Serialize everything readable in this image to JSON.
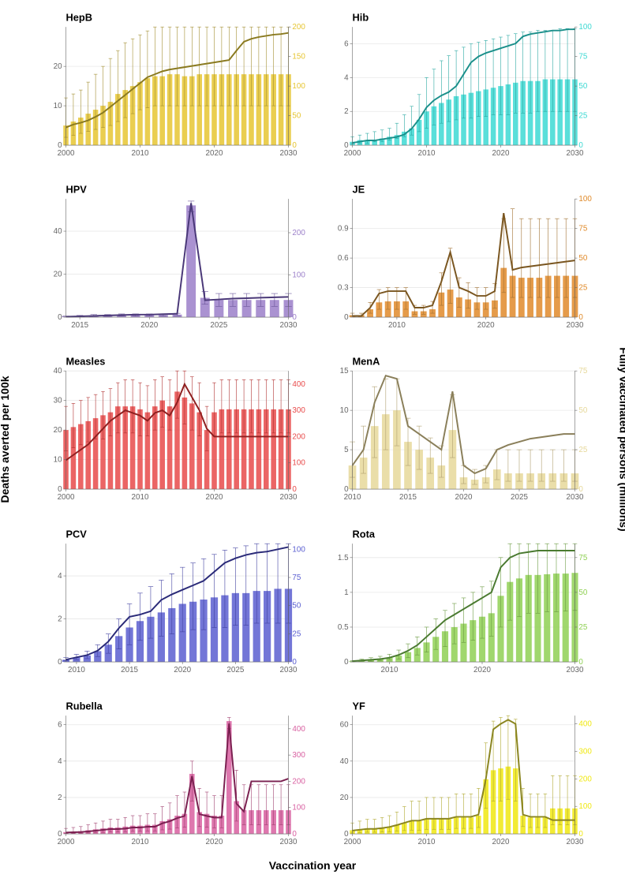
{
  "axis_left_label": "Deaths averted per 100k",
  "axis_right_label": "Fully vaccinated persons (millions)",
  "axis_bottom_label": "Vaccination year",
  "grid_color": "#e8e8e8",
  "panels": [
    {
      "title": "HepB",
      "bar_color": "#e6c531",
      "line_color": "#8a7a20",
      "err_color": "#a28e30",
      "x_start": 2000,
      "x_end": 2030,
      "x_ticks": [
        2000,
        2010,
        2020,
        2030
      ],
      "y_left_max": 30,
      "y_left_ticks": [
        0,
        10,
        20
      ],
      "y_right_max": 200,
      "y_right_ticks": [
        0,
        50,
        100,
        150,
        200
      ],
      "bars": [
        5,
        6,
        7,
        8,
        9,
        10,
        11,
        13,
        14,
        15,
        16,
        17,
        17.5,
        17.5,
        18,
        18,
        17.5,
        17.5,
        18,
        18,
        18,
        18,
        18,
        18,
        18,
        18,
        18,
        18,
        18,
        18,
        18
      ],
      "err_hi": [
        12,
        13,
        14,
        16,
        18,
        20,
        22,
        24,
        26,
        27,
        28,
        29,
        30,
        30,
        30,
        30,
        30,
        30,
        30,
        30,
        30,
        30,
        30,
        30,
        30,
        30,
        30,
        30,
        30,
        30,
        30
      ],
      "err_lo": [
        2,
        2.5,
        3,
        3.5,
        4,
        4.5,
        5,
        6,
        7,
        8,
        9,
        9.5,
        10,
        10,
        10,
        10,
        10,
        10,
        10,
        10,
        10,
        10,
        10,
        10,
        10,
        10,
        10,
        10,
        10,
        10,
        10
      ],
      "line": [
        30,
        35,
        38,
        42,
        48,
        55,
        65,
        75,
        85,
        95,
        105,
        115,
        120,
        125,
        128,
        130,
        132,
        134,
        136,
        138,
        140,
        142,
        144,
        160,
        175,
        180,
        183,
        185,
        187,
        188,
        190
      ]
    },
    {
      "title": "Hib",
      "bar_color": "#3dd9d3",
      "line_color": "#1a8f8a",
      "err_color": "#2aa8a2",
      "x_start": 2000,
      "x_end": 2030,
      "x_ticks": [
        2000,
        2010,
        2020,
        2030
      ],
      "y_left_max": 7,
      "y_left_ticks": [
        0,
        2,
        4,
        6
      ],
      "y_right_max": 100,
      "y_right_ticks": [
        0,
        25,
        50,
        75,
        100
      ],
      "bars": [
        0.2,
        0.3,
        0.3,
        0.3,
        0.4,
        0.5,
        0.6,
        0.8,
        1.0,
        1.5,
        2.0,
        2.3,
        2.5,
        2.7,
        2.9,
        3.0,
        3.1,
        3.2,
        3.3,
        3.4,
        3.5,
        3.6,
        3.7,
        3.8,
        3.8,
        3.8,
        3.9,
        3.9,
        3.9,
        3.9,
        3.9
      ],
      "err_hi": [
        0.5,
        0.6,
        0.7,
        0.8,
        0.9,
        1.0,
        1.3,
        1.8,
        2.3,
        3.0,
        4.0,
        4.5,
        5.0,
        5.3,
        5.6,
        5.8,
        6.0,
        6.1,
        6.2,
        6.3,
        6.4,
        6.5,
        6.6,
        6.7,
        6.7,
        6.8,
        6.8,
        6.8,
        6.9,
        6.9,
        6.9
      ],
      "err_lo": [
        0.1,
        0.1,
        0.1,
        0.2,
        0.2,
        0.3,
        0.4,
        0.5,
        0.6,
        0.8,
        1.0,
        1.2,
        1.3,
        1.4,
        1.5,
        1.6,
        1.6,
        1.7,
        1.7,
        1.8,
        1.8,
        1.8,
        1.9,
        1.9,
        1.9,
        2.0,
        2.0,
        2.0,
        2.0,
        2.0,
        2.0
      ],
      "line": [
        2,
        3,
        4,
        4,
        5,
        6,
        7,
        9,
        14,
        22,
        32,
        38,
        42,
        45,
        50,
        60,
        70,
        75,
        78,
        80,
        82,
        84,
        86,
        92,
        94,
        95,
        96,
        97,
        97,
        98,
        98
      ]
    },
    {
      "title": "HPV",
      "bar_color": "#9b7fc9",
      "line_color": "#4a3878",
      "err_color": "#6a5499",
      "x_start": 2014,
      "x_end": 2030,
      "x_ticks": [
        2015,
        2020,
        2025,
        2030
      ],
      "y_left_max": 55,
      "y_left_ticks": [
        0,
        20,
        40
      ],
      "y_right_max": 280,
      "y_right_ticks": [
        0,
        100,
        200
      ],
      "bars": [
        0.3,
        0.5,
        0.8,
        0.8,
        1.0,
        1.0,
        1.0,
        1.0,
        1.2,
        52,
        9,
        8,
        8,
        8,
        8,
        8,
        8
      ],
      "err_hi": [
        0.5,
        0.8,
        1.2,
        1.2,
        1.5,
        1.5,
        1.5,
        1.5,
        1.8,
        54,
        12,
        11,
        11,
        11,
        11,
        11,
        11
      ],
      "err_lo": [
        0.1,
        0.2,
        0.4,
        0.4,
        0.5,
        0.5,
        0.5,
        0.5,
        0.6,
        49,
        6,
        5,
        5,
        5,
        5,
        5,
        5
      ],
      "line": [
        1,
        2,
        3,
        4,
        5,
        6,
        6,
        7,
        8,
        270,
        40,
        42,
        44,
        45,
        46,
        47,
        48
      ]
    },
    {
      "title": "JE",
      "bar_color": "#e08a2a",
      "line_color": "#7a5620",
      "err_color": "#a07030",
      "x_start": 2005,
      "x_end": 2030,
      "x_ticks": [
        2010,
        2020,
        2030
      ],
      "y_left_max": 1.2,
      "y_left_ticks": [
        0,
        0.3,
        0.6,
        0.9
      ],
      "y_right_max": 100,
      "y_right_ticks": [
        0,
        25,
        50,
        75,
        100
      ],
      "bars": [
        0.02,
        0.02,
        0.08,
        0.15,
        0.16,
        0.16,
        0.16,
        0.06,
        0.06,
        0.08,
        0.25,
        0.28,
        0.2,
        0.18,
        0.15,
        0.15,
        0.17,
        0.5,
        0.42,
        0.4,
        0.4,
        0.4,
        0.42,
        0.42,
        0.42,
        0.42
      ],
      "err_hi": [
        0.04,
        0.04,
        0.15,
        0.28,
        0.3,
        0.3,
        0.3,
        0.12,
        0.12,
        0.16,
        0.45,
        0.7,
        0.4,
        0.35,
        0.3,
        0.3,
        0.34,
        1.0,
        1.1,
        1.0,
        1.0,
        1.0,
        1.0,
        1.0,
        1.0,
        1.0
      ],
      "err_lo": [
        0.01,
        0.01,
        0.04,
        0.08,
        0.08,
        0.08,
        0.08,
        0.03,
        0.03,
        0.04,
        0.12,
        0.14,
        0.1,
        0.09,
        0.08,
        0.08,
        0.09,
        0.25,
        0.2,
        0.2,
        0.2,
        0.2,
        0.2,
        0.2,
        0.2,
        0.2
      ],
      "line": [
        1,
        1,
        8,
        20,
        22,
        22,
        22,
        8,
        8,
        10,
        30,
        55,
        25,
        22,
        18,
        18,
        22,
        88,
        40,
        42,
        43,
        44,
        45,
        46,
        47,
        48
      ]
    },
    {
      "title": "Measles",
      "bar_color": "#e84a4a",
      "line_color": "#8f2020",
      "err_color": "#b03030",
      "x_start": 2000,
      "x_end": 2030,
      "x_ticks": [
        2000,
        2010,
        2020,
        2030
      ],
      "y_left_max": 40,
      "y_left_ticks": [
        0,
        10,
        20,
        30,
        40
      ],
      "y_right_max": 450,
      "y_right_ticks": [
        0,
        100,
        200,
        300,
        400
      ],
      "bars": [
        20,
        21,
        22,
        23,
        24,
        25,
        26,
        28,
        28,
        28,
        27,
        26,
        28,
        30,
        28,
        33,
        31,
        29,
        26,
        20,
        26,
        27,
        27,
        27,
        27,
        27,
        27,
        27,
        27,
        27,
        27
      ],
      "err_hi": [
        28,
        29,
        30,
        31,
        32,
        33,
        34,
        36,
        37,
        37,
        36,
        35,
        37,
        38,
        37,
        40,
        40,
        38,
        36,
        28,
        36,
        37,
        37,
        37,
        37,
        37,
        37,
        37,
        37,
        37,
        37
      ],
      "err_lo": [
        13,
        14,
        15,
        16,
        17,
        17,
        18,
        19,
        19,
        19,
        18,
        18,
        20,
        21,
        20,
        24,
        22,
        20,
        18,
        13,
        18,
        19,
        19,
        19,
        19,
        19,
        19,
        19,
        19,
        19,
        19
      ],
      "line": [
        110,
        130,
        150,
        170,
        200,
        230,
        260,
        280,
        300,
        290,
        280,
        260,
        290,
        300,
        280,
        330,
        400,
        350,
        300,
        230,
        200,
        200,
        200,
        200,
        200,
        200,
        200,
        200,
        200,
        200,
        200
      ]
    },
    {
      "title": "MenA",
      "bar_color": "#e6d89a",
      "line_color": "#8a7f5a",
      "err_color": "#b0a070",
      "x_start": 2010,
      "x_end": 2030,
      "x_ticks": [
        2010,
        2015,
        2020,
        2025,
        2030
      ],
      "y_left_max": 15,
      "y_left_ticks": [
        0,
        5,
        10,
        15
      ],
      "y_right_max": 75,
      "y_right_ticks": [
        0,
        25,
        50,
        75
      ],
      "bars": [
        3,
        4,
        8,
        9.5,
        10,
        6,
        5,
        4,
        3,
        7.5,
        1.5,
        1.2,
        1.5,
        2.5,
        2,
        2,
        2,
        2,
        2,
        2,
        2
      ],
      "err_hi": [
        6,
        8,
        13,
        14,
        14,
        9,
        8,
        6.5,
        5.5,
        12,
        3,
        2.5,
        3,
        5,
        5,
        5,
        5,
        5,
        5,
        5,
        5
      ],
      "err_lo": [
        1.5,
        2,
        4,
        5,
        5.5,
        3,
        2.5,
        2,
        1.5,
        4,
        0.7,
        0.6,
        0.8,
        1.2,
        1,
        1,
        1,
        1,
        1,
        1,
        1
      ],
      "line": [
        15,
        25,
        55,
        72,
        70,
        40,
        35,
        30,
        25,
        62,
        15,
        10,
        13,
        25,
        28,
        30,
        32,
        33,
        34,
        35,
        35
      ]
    },
    {
      "title": "PCV",
      "bar_color": "#5a5ed0",
      "line_color": "#2a2a78",
      "err_color": "#4040a0",
      "x_start": 2009,
      "x_end": 2030,
      "x_ticks": [
        2010,
        2015,
        2020,
        2025,
        2030
      ],
      "y_left_max": 5.5,
      "y_left_ticks": [
        0,
        2,
        4
      ],
      "y_right_max": 105,
      "y_right_ticks": [
        0,
        25,
        50,
        75,
        100
      ],
      "bars": [
        0.1,
        0.2,
        0.3,
        0.5,
        0.8,
        1.2,
        1.6,
        1.9,
        2.1,
        2.3,
        2.5,
        2.7,
        2.8,
        2.9,
        3.0,
        3.1,
        3.2,
        3.2,
        3.3,
        3.3,
        3.4,
        3.4
      ],
      "err_hi": [
        0.2,
        0.35,
        0.5,
        0.8,
        1.3,
        2.0,
        2.7,
        3.2,
        3.5,
        3.8,
        4.1,
        4.4,
        4.6,
        4.8,
        5.0,
        5.2,
        5.3,
        5.4,
        5.5,
        5.5,
        5.5,
        5.5
      ],
      "err_lo": [
        0.05,
        0.1,
        0.15,
        0.25,
        0.4,
        0.6,
        0.8,
        1.0,
        1.1,
        1.2,
        1.3,
        1.4,
        1.5,
        1.5,
        1.6,
        1.6,
        1.7,
        1.7,
        1.8,
        1.8,
        1.8,
        1.8
      ],
      "line": [
        2,
        4,
        6,
        10,
        18,
        30,
        40,
        42,
        45,
        55,
        60,
        64,
        68,
        72,
        80,
        88,
        92,
        95,
        97,
        98,
        100,
        102
      ]
    },
    {
      "title": "Rota",
      "bar_color": "#8fd053",
      "line_color": "#4a7a30",
      "err_color": "#6a9a40",
      "x_start": 2006,
      "x_end": 2030,
      "x_ticks": [
        2010,
        2020,
        2030
      ],
      "y_left_max": 1.7,
      "y_left_ticks": [
        0,
        0.5,
        1.0,
        1.5
      ],
      "y_right_max": 85,
      "y_right_ticks": [
        0,
        25,
        50,
        75
      ],
      "bars": [
        0.01,
        0.02,
        0.03,
        0.04,
        0.06,
        0.09,
        0.14,
        0.2,
        0.28,
        0.36,
        0.44,
        0.5,
        0.55,
        0.6,
        0.65,
        0.7,
        0.95,
        1.15,
        1.2,
        1.25,
        1.25,
        1.26,
        1.27,
        1.27,
        1.28
      ],
      "err_hi": [
        0.02,
        0.04,
        0.06,
        0.08,
        0.11,
        0.17,
        0.26,
        0.36,
        0.5,
        0.62,
        0.74,
        0.84,
        0.92,
        1.0,
        1.08,
        1.16,
        1.5,
        1.7,
        1.7,
        1.7,
        1.7,
        1.7,
        1.7,
        1.7,
        1.7
      ],
      "err_lo": [
        0,
        0.01,
        0.01,
        0.02,
        0.03,
        0.04,
        0.06,
        0.1,
        0.14,
        0.18,
        0.22,
        0.26,
        0.28,
        0.31,
        0.34,
        0.37,
        0.5,
        0.6,
        0.65,
        0.7,
        0.7,
        0.72,
        0.72,
        0.73,
        0.74
      ],
      "line": [
        0.5,
        1,
        1.5,
        2,
        3,
        5,
        8,
        12,
        18,
        24,
        30,
        34,
        38,
        42,
        46,
        50,
        68,
        75,
        78,
        79,
        80,
        80,
        80,
        80,
        80
      ]
    },
    {
      "title": "Rubella",
      "bar_color": "#d85fa0",
      "line_color": "#7a2050",
      "err_color": "#a04070",
      "x_start": 2000,
      "x_end": 2030,
      "x_ticks": [
        2000,
        2010,
        2020,
        2030
      ],
      "y_left_max": 6.5,
      "y_left_ticks": [
        0,
        2,
        4,
        6
      ],
      "y_right_max": 450,
      "y_right_ticks": [
        0,
        100,
        200,
        300,
        400
      ],
      "bars": [
        0.1,
        0.12,
        0.15,
        0.2,
        0.25,
        0.3,
        0.35,
        0.35,
        0.4,
        0.45,
        0.45,
        0.5,
        0.5,
        0.7,
        0.8,
        1.0,
        1.1,
        3.3,
        1.2,
        1.1,
        1.0,
        1.0,
        6.2,
        1.8,
        1.3,
        1.3,
        1.3,
        1.3,
        1.3,
        1.3,
        1.3
      ],
      "err_hi": [
        0.3,
        0.35,
        0.4,
        0.5,
        0.6,
        0.7,
        0.8,
        0.8,
        0.9,
        1.0,
        1.0,
        1.1,
        1.1,
        1.5,
        1.7,
        2.1,
        2.3,
        4.0,
        2.5,
        2.3,
        2.1,
        2.1,
        6.4,
        3.5,
        2.7,
        2.7,
        2.7,
        2.7,
        2.7,
        2.7,
        2.7
      ],
      "err_lo": [
        0.02,
        0.03,
        0.04,
        0.05,
        0.07,
        0.08,
        0.1,
        0.1,
        0.12,
        0.14,
        0.14,
        0.16,
        0.16,
        0.22,
        0.26,
        0.32,
        0.36,
        1.8,
        0.4,
        0.36,
        0.33,
        0.33,
        5.8,
        0.7,
        0.5,
        0.5,
        0.5,
        0.5,
        0.5,
        0.5,
        0.5
      ],
      "line": [
        5,
        6,
        7,
        9,
        12,
        15,
        18,
        18,
        20,
        24,
        24,
        27,
        27,
        40,
        48,
        60,
        68,
        220,
        75,
        68,
        62,
        62,
        420,
        115,
        85,
        200,
        200,
        200,
        200,
        200,
        210
      ]
    },
    {
      "title": "YF",
      "bar_color": "#f0e810",
      "line_color": "#8a8520",
      "err_color": "#b0a830",
      "x_start": 2000,
      "x_end": 2030,
      "x_ticks": [
        2000,
        2010,
        2020,
        2030
      ],
      "y_left_max": 65,
      "y_left_ticks": [
        0,
        20,
        40,
        60
      ],
      "y_right_max": 430,
      "y_right_ticks": [
        0,
        100,
        200,
        300,
        400
      ],
      "bars": [
        2,
        2.5,
        3,
        3,
        3.5,
        4,
        5,
        6,
        7,
        7,
        8,
        8,
        8,
        8,
        9,
        9,
        9,
        10,
        30,
        35,
        36,
        37,
        36,
        10,
        9,
        9,
        9,
        14,
        14,
        14,
        14
      ],
      "err_hi": [
        6,
        7,
        8,
        8,
        9,
        10,
        12,
        15,
        18,
        18,
        20,
        20,
        20,
        20,
        22,
        22,
        22,
        25,
        50,
        62,
        64,
        65,
        63,
        25,
        22,
        22,
        22,
        32,
        32,
        32,
        32
      ],
      "err_lo": [
        0.5,
        0.7,
        0.9,
        0.9,
        1,
        1.2,
        1.5,
        1.8,
        2,
        2,
        2.5,
        2.5,
        2.5,
        2.5,
        3,
        3,
        3,
        3.5,
        14,
        18,
        18,
        19,
        18,
        4,
        3.5,
        3.5,
        3.5,
        5,
        5,
        5,
        5
      ],
      "line": [
        12,
        15,
        18,
        18,
        21,
        25,
        32,
        40,
        48,
        48,
        55,
        55,
        55,
        55,
        62,
        62,
        62,
        70,
        200,
        380,
        400,
        415,
        400,
        70,
        62,
        62,
        62,
        50,
        50,
        50,
        50
      ]
    }
  ]
}
